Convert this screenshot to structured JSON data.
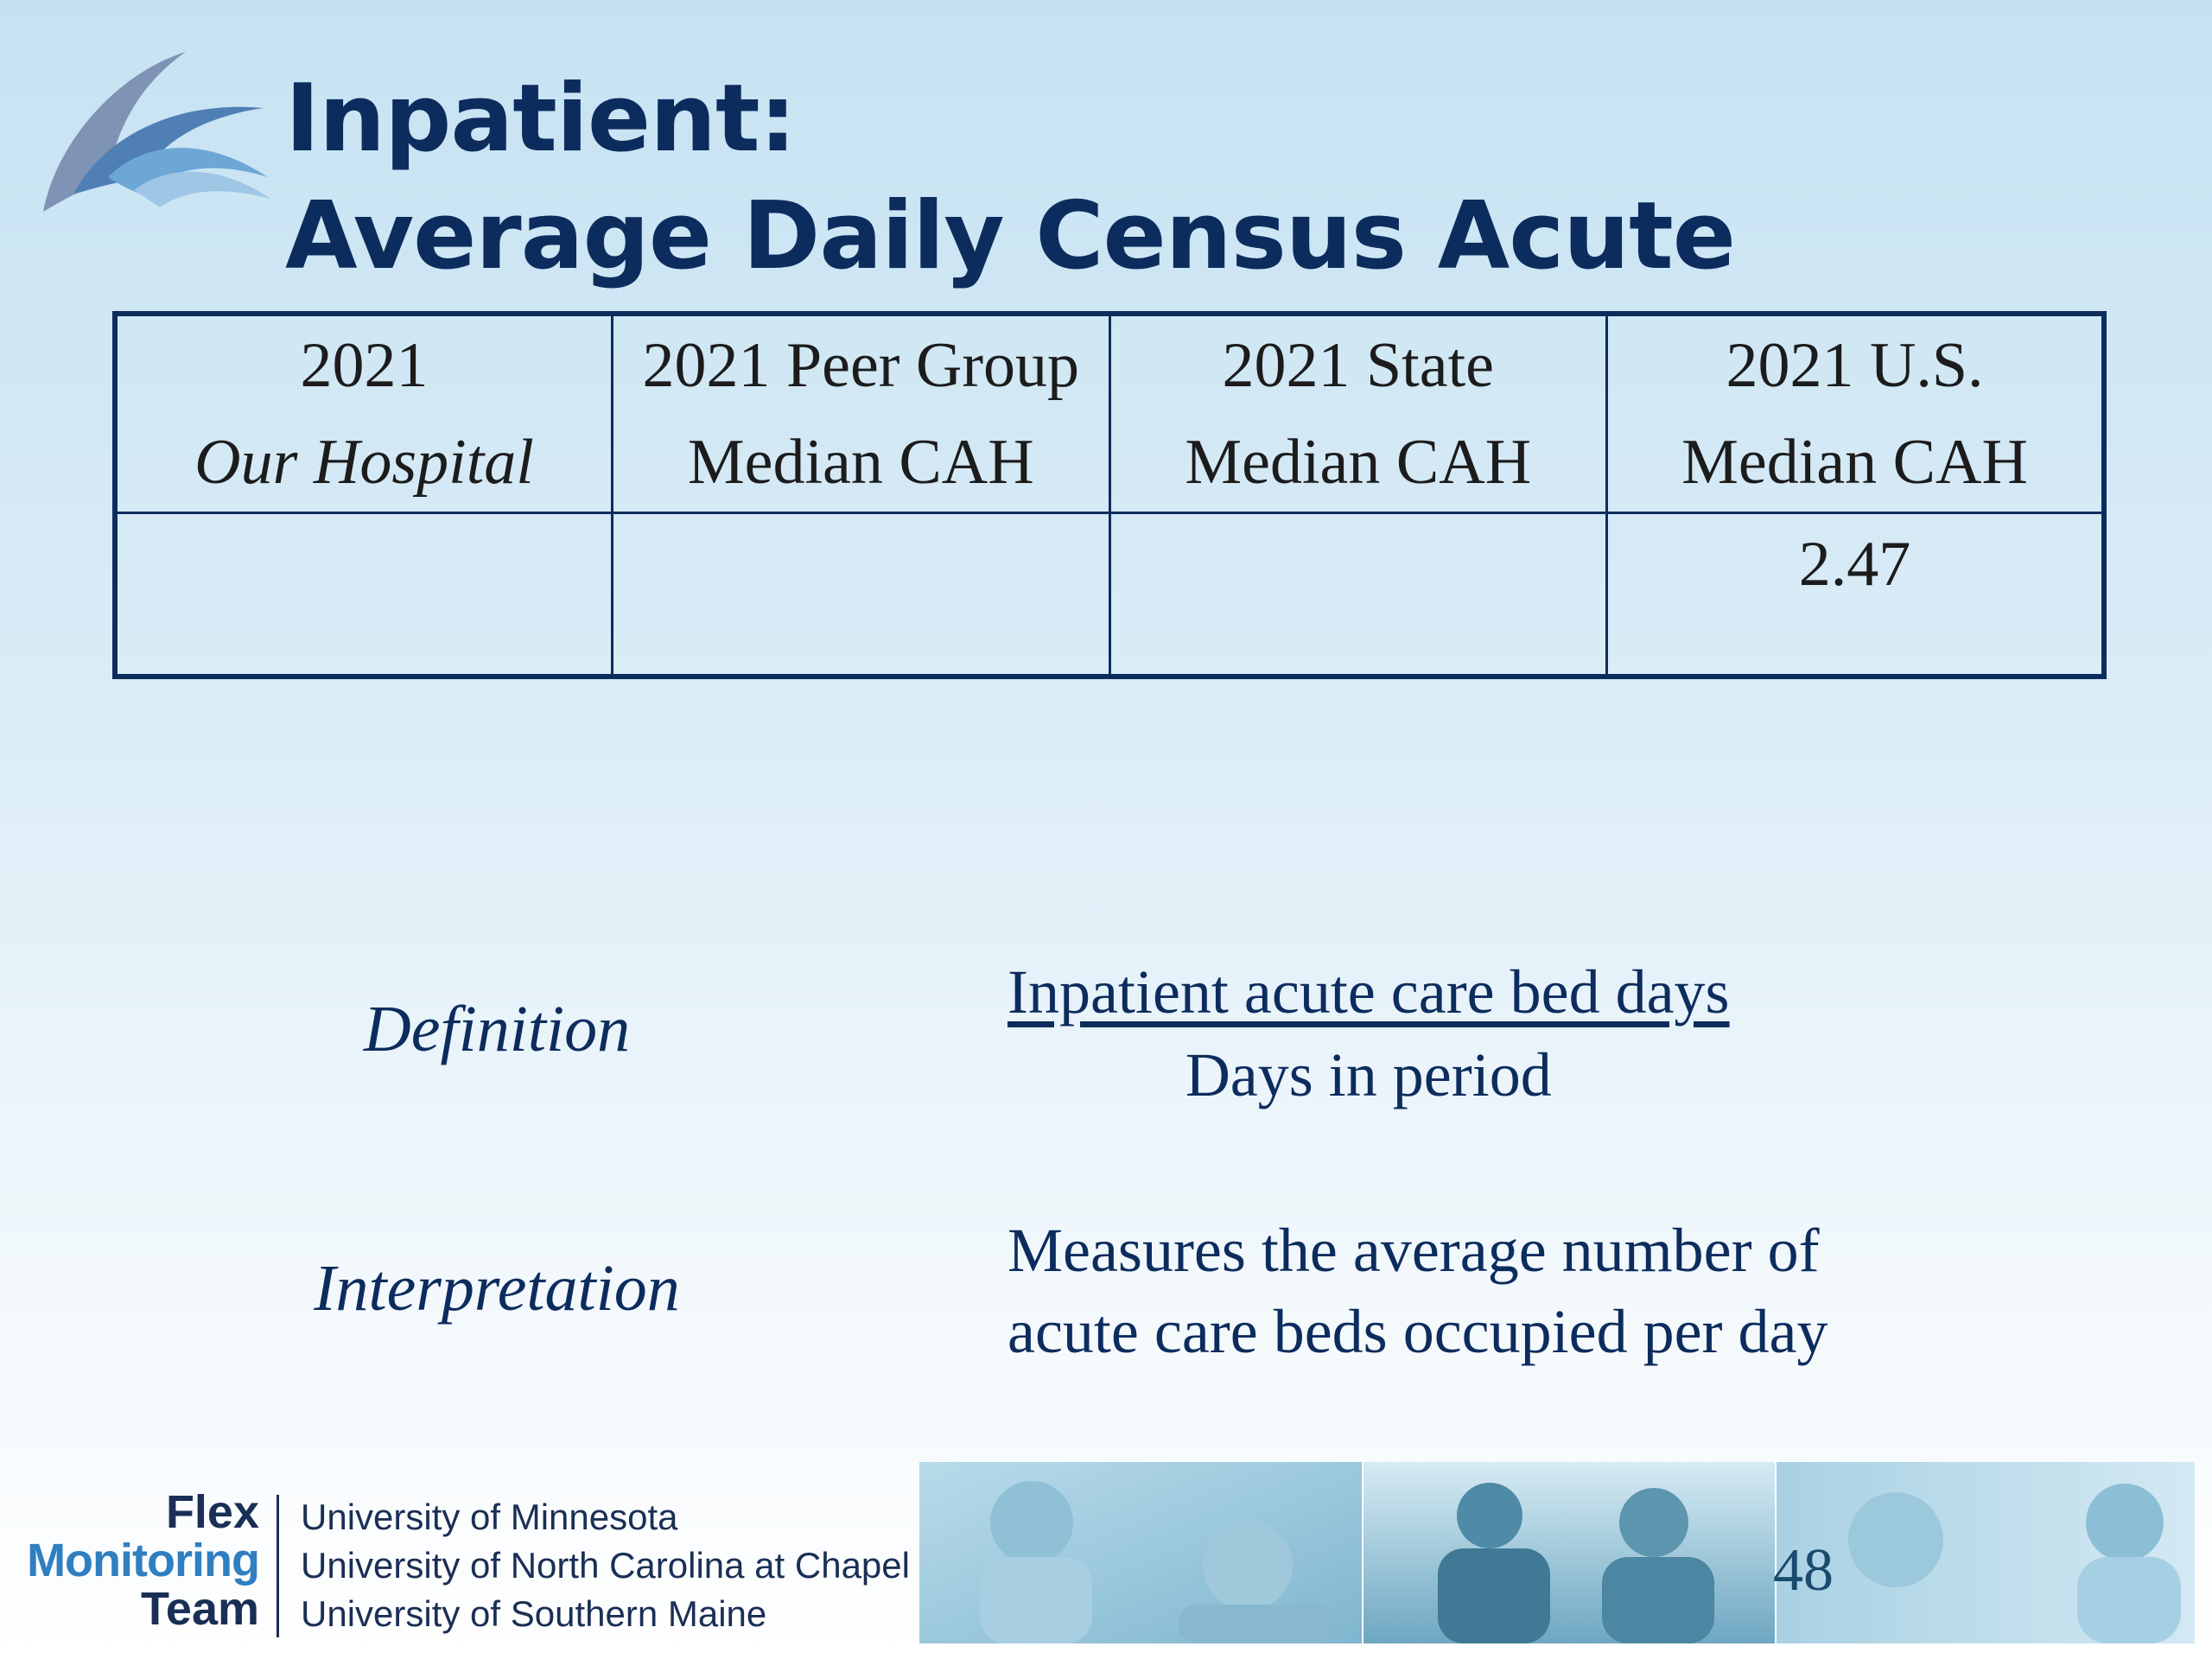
{
  "title": {
    "line1": "Inpatient:",
    "line2": "Average Daily Census Acute"
  },
  "table": {
    "headers": [
      {
        "line1": "2021",
        "line2": "Our Hospital"
      },
      {
        "line1": "2021 Peer Group",
        "line2": "Median CAH"
      },
      {
        "line1": "2021 State",
        "line2": "Median CAH"
      },
      {
        "line1": "2021 U.S.",
        "line2": "Median CAH"
      }
    ],
    "values": [
      "",
      "",
      "",
      "2.47"
    ]
  },
  "definition": {
    "label": "Definition",
    "numerator": "Inpatient acute care bed days",
    "denominator": "Days in period"
  },
  "interpretation": {
    "label": "Interpretation",
    "line1": "Measures the average number of",
    "line2": "acute care beds occupied per day"
  },
  "footer": {
    "logo_line1": "Flex",
    "logo_line2": "Monitoring",
    "logo_line3": "Team",
    "universities": [
      "University of Minnesota",
      "University of North Carolina at Chapel Hill",
      "University of Southern Maine"
    ],
    "page_number": "48"
  },
  "colors": {
    "title": "#0d2c5e",
    "table_border": "#0d2c5e",
    "accent_blue": "#2f7fc1"
  },
  "icons": [
    "wave-sail-logo-icon",
    "photo-strip"
  ]
}
